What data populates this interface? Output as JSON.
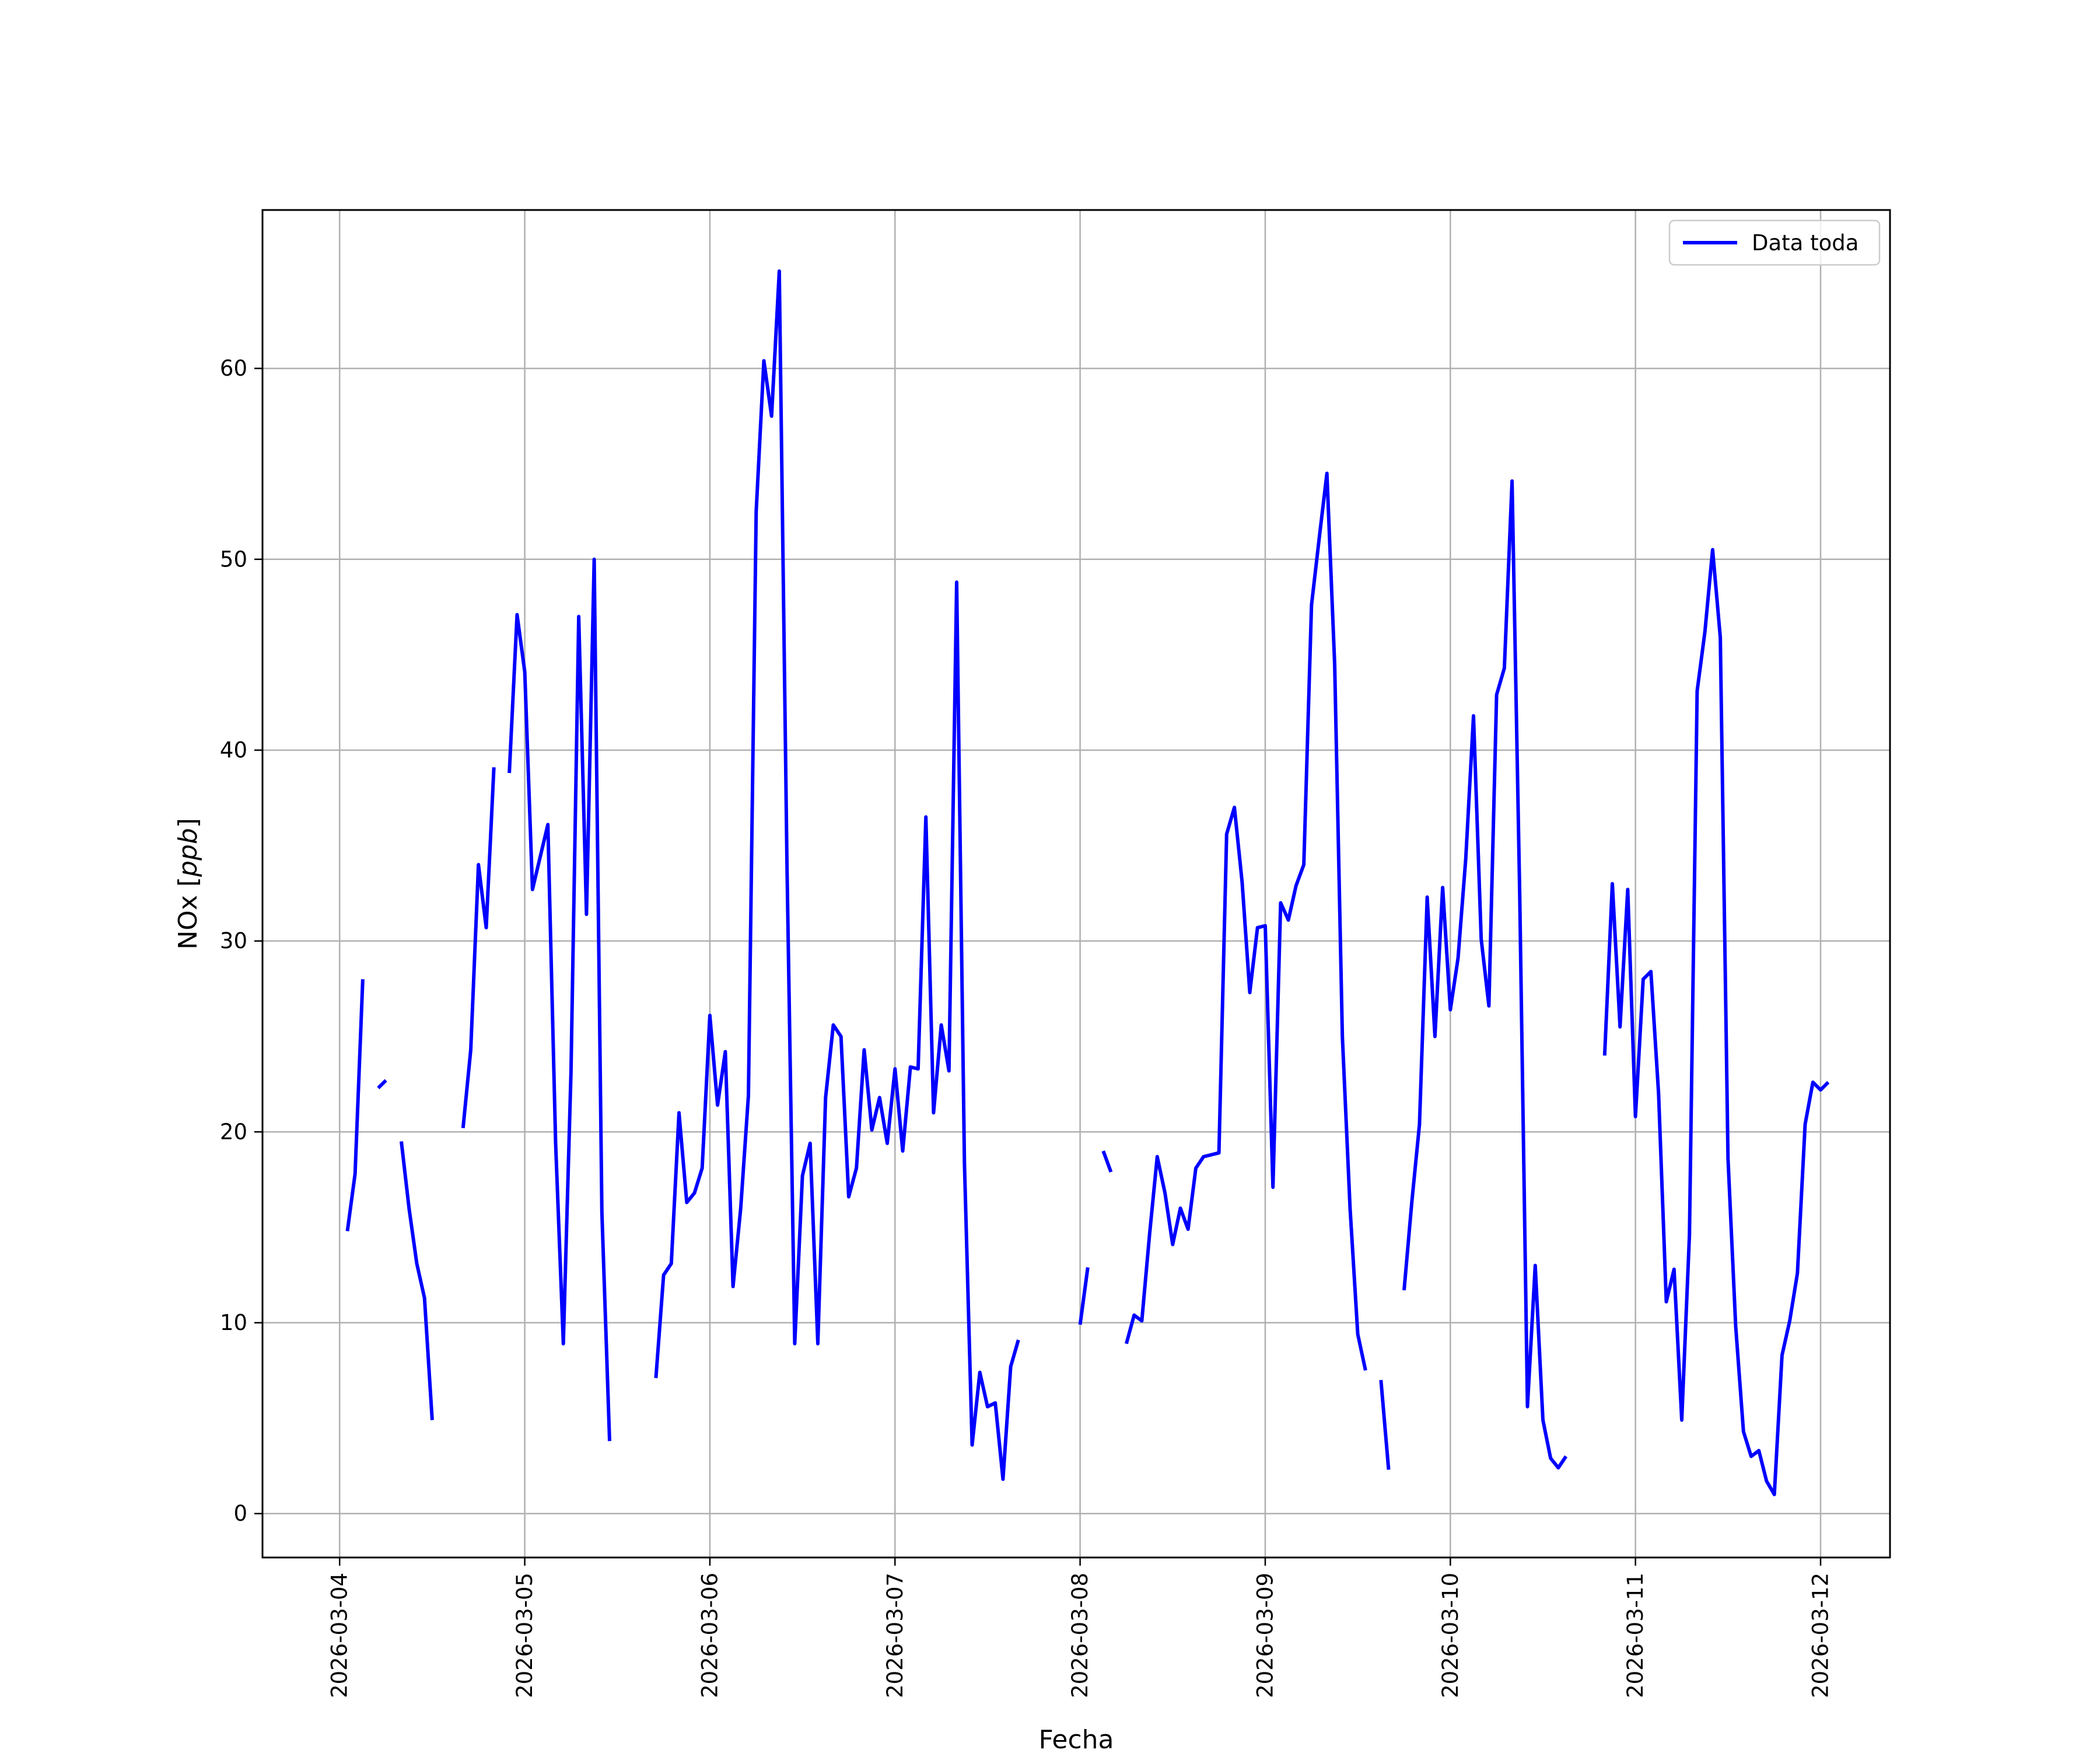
{
  "chart_data": {
    "type": "line",
    "xlabel": "Fecha",
    "ylabel": "NOx [",
    "ylabel_italic": "ppb",
    "ylabel_suffix": "]",
    "ylim": [
      -2.3,
      68.3
    ],
    "xlim": [
      "2026-03-03 14:00",
      "2026-03-12 09:00"
    ],
    "grid": true,
    "legend_position": "top-right",
    "x_ticks": [
      "2026-03-04",
      "2026-03-05",
      "2026-03-06",
      "2026-03-07",
      "2026-03-08",
      "2026-03-09",
      "2026-03-10",
      "2026-03-11",
      "2026-03-12"
    ],
    "y_ticks": [
      0,
      10,
      20,
      30,
      40,
      50,
      60
    ],
    "series": [
      {
        "name": "Data toda",
        "color": "#0000ff",
        "points": [
          [
            "2026-03-04 01:00",
            14.8
          ],
          [
            "2026-03-04 02:00",
            17.8
          ],
          [
            "2026-03-04 03:00",
            28.0
          ],
          [
            "2026-03-04 04:00",
            null
          ],
          [
            "2026-03-04 05:00",
            22.3
          ],
          [
            "2026-03-04 06:00",
            22.7
          ],
          [
            "2026-03-04 07:00",
            null
          ],
          [
            "2026-03-04 08:00",
            19.5
          ],
          [
            "2026-03-04 09:00",
            16.0
          ],
          [
            "2026-03-04 10:00",
            13.1
          ],
          [
            "2026-03-04 11:00",
            11.3
          ],
          [
            "2026-03-04 12:00",
            4.9
          ],
          [
            "2026-03-04 13:00",
            null
          ],
          [
            "2026-03-04 16:00",
            20.2
          ],
          [
            "2026-03-04 17:00",
            24.3
          ],
          [
            "2026-03-04 18:00",
            34.0
          ],
          [
            "2026-03-04 19:00",
            30.7
          ],
          [
            "2026-03-04 20:00",
            39.1
          ],
          [
            "2026-03-04 21:00",
            null
          ],
          [
            "2026-03-04 22:00",
            38.8
          ],
          [
            "2026-03-04 23:00",
            47.1
          ],
          [
            "2026-03-05 00:00",
            44.1
          ],
          [
            "2026-03-05 01:00",
            32.7
          ],
          [
            "2026-03-05 02:00",
            34.4
          ],
          [
            "2026-03-05 03:00",
            36.1
          ],
          [
            "2026-03-05 04:00",
            19.4
          ],
          [
            "2026-03-05 05:00",
            8.9
          ],
          [
            "2026-03-05 06:00",
            23.2
          ],
          [
            "2026-03-05 07:00",
            47.0
          ],
          [
            "2026-03-05 08:00",
            31.4
          ],
          [
            "2026-03-05 09:00",
            50.0
          ],
          [
            "2026-03-05 10:00",
            15.8
          ],
          [
            "2026-03-05 11:00",
            3.8
          ],
          [
            "2026-03-05 12:00",
            null
          ],
          [
            "2026-03-05 17:00",
            7.1
          ],
          [
            "2026-03-05 18:00",
            12.5
          ],
          [
            "2026-03-05 19:00",
            13.1
          ],
          [
            "2026-03-05 20:00",
            21.0
          ],
          [
            "2026-03-05 21:00",
            16.3
          ],
          [
            "2026-03-05 22:00",
            16.8
          ],
          [
            "2026-03-05 23:00",
            18.1
          ],
          [
            "2026-03-06 00:00",
            26.1
          ],
          [
            "2026-03-06 01:00",
            21.4
          ],
          [
            "2026-03-06 02:00",
            24.2
          ],
          [
            "2026-03-06 03:00",
            11.9
          ],
          [
            "2026-03-06 04:00",
            16.0
          ],
          [
            "2026-03-06 05:00",
            21.9
          ],
          [
            "2026-03-06 06:00",
            52.5
          ],
          [
            "2026-03-06 07:00",
            60.4
          ],
          [
            "2026-03-06 08:00",
            57.5
          ],
          [
            "2026-03-06 09:00",
            65.1
          ],
          [
            "2026-03-06 10:00",
            34.0
          ],
          [
            "2026-03-06 11:00",
            8.9
          ],
          [
            "2026-03-06 12:00",
            17.7
          ],
          [
            "2026-03-06 13:00",
            19.4
          ],
          [
            "2026-03-06 14:00",
            8.9
          ],
          [
            "2026-03-06 15:00",
            21.8
          ],
          [
            "2026-03-06 16:00",
            25.6
          ],
          [
            "2026-03-06 17:00",
            25.0
          ],
          [
            "2026-03-06 18:00",
            16.6
          ],
          [
            "2026-03-06 19:00",
            18.1
          ],
          [
            "2026-03-06 20:00",
            24.3
          ],
          [
            "2026-03-06 21:00",
            20.1
          ],
          [
            "2026-03-06 22:00",
            21.8
          ],
          [
            "2026-03-06 23:00",
            19.4
          ],
          [
            "2026-03-07 00:00",
            23.3
          ],
          [
            "2026-03-07 01:00",
            19.0
          ],
          [
            "2026-03-07 02:00",
            23.4
          ],
          [
            "2026-03-07 03:00",
            23.3
          ],
          [
            "2026-03-07 04:00",
            36.5
          ],
          [
            "2026-03-07 05:00",
            21.0
          ],
          [
            "2026-03-07 06:00",
            25.6
          ],
          [
            "2026-03-07 07:00",
            23.2
          ],
          [
            "2026-03-07 08:00",
            48.8
          ],
          [
            "2026-03-07 09:00",
            18.4
          ],
          [
            "2026-03-07 10:00",
            3.6
          ],
          [
            "2026-03-07 11:00",
            7.4
          ],
          [
            "2026-03-07 12:00",
            5.6
          ],
          [
            "2026-03-07 13:00",
            5.8
          ],
          [
            "2026-03-07 14:00",
            1.8
          ],
          [
            "2026-03-07 15:00",
            7.7
          ],
          [
            "2026-03-07 16:00",
            9.1
          ],
          [
            "2026-03-07 17:00",
            null
          ],
          [
            "2026-03-08 00:00",
            9.9
          ],
          [
            "2026-03-08 01:00",
            12.9
          ],
          [
            "2026-03-08 02:00",
            null
          ],
          [
            "2026-03-08 03:00",
            19.0
          ],
          [
            "2026-03-08 04:00",
            17.9
          ],
          [
            "2026-03-08 05:00",
            null
          ],
          [
            "2026-03-08 06:00",
            8.9
          ],
          [
            "2026-03-08 07:00",
            10.4
          ],
          [
            "2026-03-08 08:00",
            10.1
          ],
          [
            "2026-03-08 09:00",
            14.6
          ],
          [
            "2026-03-08 10:00",
            18.7
          ],
          [
            "2026-03-08 11:00",
            16.8
          ],
          [
            "2026-03-08 12:00",
            14.1
          ],
          [
            "2026-03-08 13:00",
            16.0
          ],
          [
            "2026-03-08 14:00",
            14.9
          ],
          [
            "2026-03-08 15:00",
            18.1
          ],
          [
            "2026-03-08 16:00",
            18.7
          ],
          [
            "2026-03-08 17:00",
            18.8
          ],
          [
            "2026-03-08 18:00",
            18.9
          ],
          [
            "2026-03-08 19:00",
            35.6
          ],
          [
            "2026-03-08 20:00",
            37.0
          ],
          [
            "2026-03-08 21:00",
            33.1
          ],
          [
            "2026-03-08 22:00",
            27.3
          ],
          [
            "2026-03-08 23:00",
            30.7
          ],
          [
            "2026-03-09 00:00",
            30.8
          ],
          [
            "2026-03-09 01:00",
            17.1
          ],
          [
            "2026-03-09 02:00",
            32.0
          ],
          [
            "2026-03-09 03:00",
            31.1
          ],
          [
            "2026-03-09 04:00",
            32.9
          ],
          [
            "2026-03-09 05:00",
            34.0
          ],
          [
            "2026-03-09 06:00",
            47.6
          ],
          [
            "2026-03-09 07:00",
            51.1
          ],
          [
            "2026-03-09 08:00",
            54.5
          ],
          [
            "2026-03-09 09:00",
            44.5
          ],
          [
            "2026-03-09 10:00",
            25.0
          ],
          [
            "2026-03-09 11:00",
            16.0
          ],
          [
            "2026-03-09 12:00",
            9.4
          ],
          [
            "2026-03-09 13:00",
            7.5
          ],
          [
            "2026-03-09 14:00",
            null
          ],
          [
            "2026-03-09 15:00",
            7.0
          ],
          [
            "2026-03-09 16:00",
            2.3
          ],
          [
            "2026-03-09 17:00",
            null
          ],
          [
            "2026-03-09 18:00",
            11.7
          ],
          [
            "2026-03-09 19:00",
            16.3
          ],
          [
            "2026-03-09 20:00",
            20.4
          ],
          [
            "2026-03-09 21:00",
            32.3
          ],
          [
            "2026-03-09 22:00",
            25.0
          ],
          [
            "2026-03-09 23:00",
            32.8
          ],
          [
            "2026-03-10 00:00",
            26.4
          ],
          [
            "2026-03-10 01:00",
            29.1
          ],
          [
            "2026-03-10 02:00",
            34.3
          ],
          [
            "2026-03-10 03:00",
            41.8
          ],
          [
            "2026-03-10 04:00",
            30.1
          ],
          [
            "2026-03-10 05:00",
            26.6
          ],
          [
            "2026-03-10 06:00",
            42.9
          ],
          [
            "2026-03-10 07:00",
            44.3
          ],
          [
            "2026-03-10 08:00",
            54.1
          ],
          [
            "2026-03-10 09:00",
            32.3
          ],
          [
            "2026-03-10 10:00",
            5.6
          ],
          [
            "2026-03-10 11:00",
            13.0
          ],
          [
            "2026-03-10 12:00",
            4.9
          ],
          [
            "2026-03-10 13:00",
            2.9
          ],
          [
            "2026-03-10 14:00",
            2.4
          ],
          [
            "2026-03-10 15:00",
            3.0
          ],
          [
            "2026-03-10 16:00",
            null
          ],
          [
            "2026-03-10 20:00",
            24.0
          ],
          [
            "2026-03-10 21:00",
            33.0
          ],
          [
            "2026-03-10 22:00",
            25.5
          ],
          [
            "2026-03-10 23:00",
            32.7
          ],
          [
            "2026-03-11 00:00",
            20.8
          ],
          [
            "2026-03-11 01:00",
            28.0
          ],
          [
            "2026-03-11 02:00",
            28.4
          ],
          [
            "2026-03-11 03:00",
            22.0
          ],
          [
            "2026-03-11 04:00",
            11.1
          ],
          [
            "2026-03-11 05:00",
            12.8
          ],
          [
            "2026-03-11 06:00",
            4.9
          ],
          [
            "2026-03-11 07:00",
            14.6
          ],
          [
            "2026-03-11 08:00",
            43.1
          ],
          [
            "2026-03-11 09:00",
            46.2
          ],
          [
            "2026-03-11 10:00",
            50.5
          ],
          [
            "2026-03-11 11:00",
            45.9
          ],
          [
            "2026-03-11 12:00",
            18.6
          ],
          [
            "2026-03-11 13:00",
            9.8
          ],
          [
            "2026-03-11 14:00",
            4.3
          ],
          [
            "2026-03-11 15:00",
            3.0
          ],
          [
            "2026-03-11 16:00",
            3.3
          ],
          [
            "2026-03-11 17:00",
            1.7
          ],
          [
            "2026-03-11 18:00",
            1.0
          ],
          [
            "2026-03-11 19:00",
            8.3
          ],
          [
            "2026-03-11 20:00",
            10.1
          ],
          [
            "2026-03-11 21:00",
            12.6
          ],
          [
            "2026-03-11 22:00",
            20.4
          ],
          [
            "2026-03-11 23:00",
            22.6
          ],
          [
            "2026-03-12 00:00",
            22.2
          ],
          [
            "2026-03-12 01:00",
            22.6
          ]
        ]
      }
    ]
  }
}
